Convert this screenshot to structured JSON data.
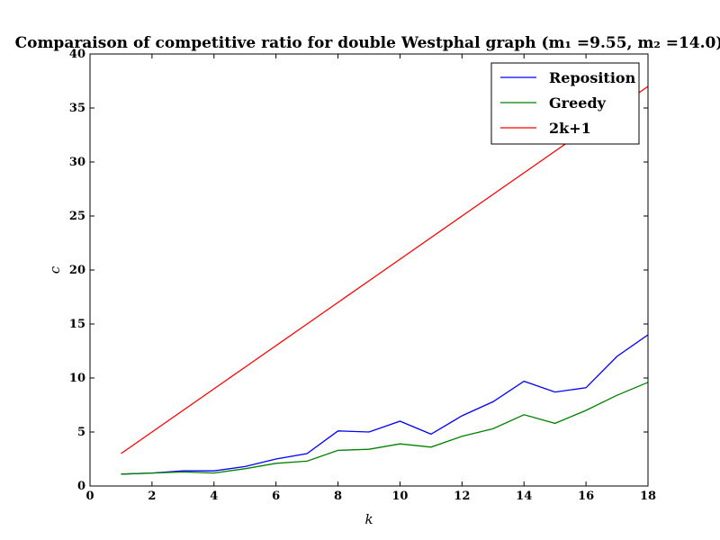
{
  "chart_data": {
    "type": "line",
    "title": "Comparaison of competitive ratio for double Westphal graph (m₁ =9.55, m₂ =14.0)",
    "xlabel": "k",
    "ylabel": "c",
    "xlim": [
      0,
      18
    ],
    "ylim": [
      0,
      40
    ],
    "xticks": [
      0,
      2,
      4,
      6,
      8,
      10,
      12,
      14,
      16,
      18
    ],
    "yticks": [
      0,
      5,
      10,
      15,
      20,
      25,
      30,
      35,
      40
    ],
    "grid": false,
    "legend_position": "top-right",
    "x": [
      1,
      2,
      3,
      4,
      5,
      6,
      7,
      8,
      9,
      10,
      11,
      12,
      13,
      14,
      15,
      16,
      17,
      18
    ],
    "series": [
      {
        "name": "Reposition",
        "color": "#0000ff",
        "values": [
          1.1,
          1.2,
          1.4,
          1.4,
          1.8,
          2.5,
          3.0,
          5.1,
          5.0,
          6.0,
          4.8,
          6.5,
          7.8,
          9.7,
          8.7,
          9.1,
          12.0,
          14.0
        ]
      },
      {
        "name": "Greedy",
        "color": "#008000",
        "values": [
          1.1,
          1.2,
          1.3,
          1.2,
          1.6,
          2.1,
          2.3,
          3.3,
          3.4,
          3.9,
          3.6,
          4.6,
          5.3,
          6.6,
          5.8,
          7.0,
          8.4,
          9.6
        ]
      },
      {
        "name": "2k+1",
        "color": "#ff0000",
        "values": [
          3,
          5,
          7,
          9,
          11,
          13,
          15,
          17,
          19,
          21,
          23,
          25,
          27,
          29,
          31,
          33,
          35,
          37
        ]
      }
    ]
  }
}
